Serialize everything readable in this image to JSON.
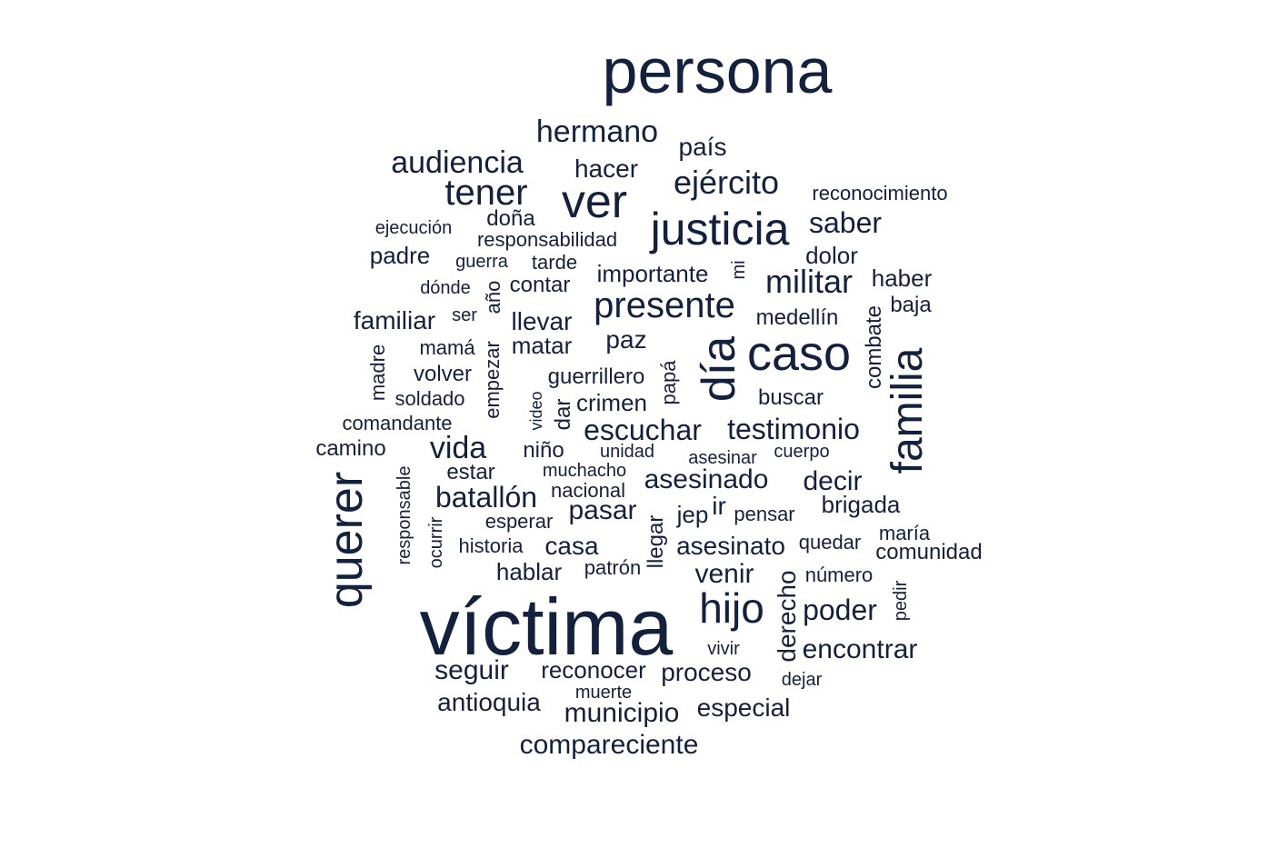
{
  "colors": {
    "ink": "#14213d",
    "background": "#ffffff"
  },
  "words": [
    "persona",
    "víctima",
    "querer",
    "familia",
    "día",
    "caso",
    "ver",
    "justicia",
    "hijo",
    "tener",
    "presente",
    "ejército",
    "audiencia",
    "hermano",
    "militar",
    "escuchar",
    "testimonio",
    "batallón",
    "vida",
    "saber",
    "hacer",
    "país",
    "reconocimiento",
    "compareciente",
    "antioquia",
    "municipio",
    "especial",
    "proceso",
    "seguir",
    "reconocer",
    "muerte",
    "encontrar",
    "vivir",
    "dejar",
    "derecho",
    "poder",
    "número",
    "pedir",
    "venir",
    "asesinato",
    "quedar",
    "comunidad",
    "maría",
    "casa",
    "historia",
    "hablar",
    "patrón",
    "llegar",
    "ocurrir",
    "responsable",
    "pasar",
    "esperar",
    "nacional",
    "jep",
    "ir",
    "pensar",
    "brigada",
    "decir",
    "asesinado",
    "muchacho",
    "estar",
    "niño",
    "unidad",
    "asesinar",
    "cuerpo",
    "buscar",
    "crimen",
    "papá",
    "dar",
    "video",
    "guerrillero",
    "volver",
    "soldado",
    "comandante",
    "camino",
    "madre",
    "mamá",
    "empezar",
    "matar",
    "llevar",
    "familiar",
    "ser",
    "dónde",
    "contar",
    "año",
    "guerra",
    "tarde",
    "padre",
    "importante",
    "mi",
    "responsabilidad",
    "doña",
    "ejecución",
    "dolor",
    "haber",
    "baja",
    "combate",
    "medellín",
    "paz"
  ]
}
